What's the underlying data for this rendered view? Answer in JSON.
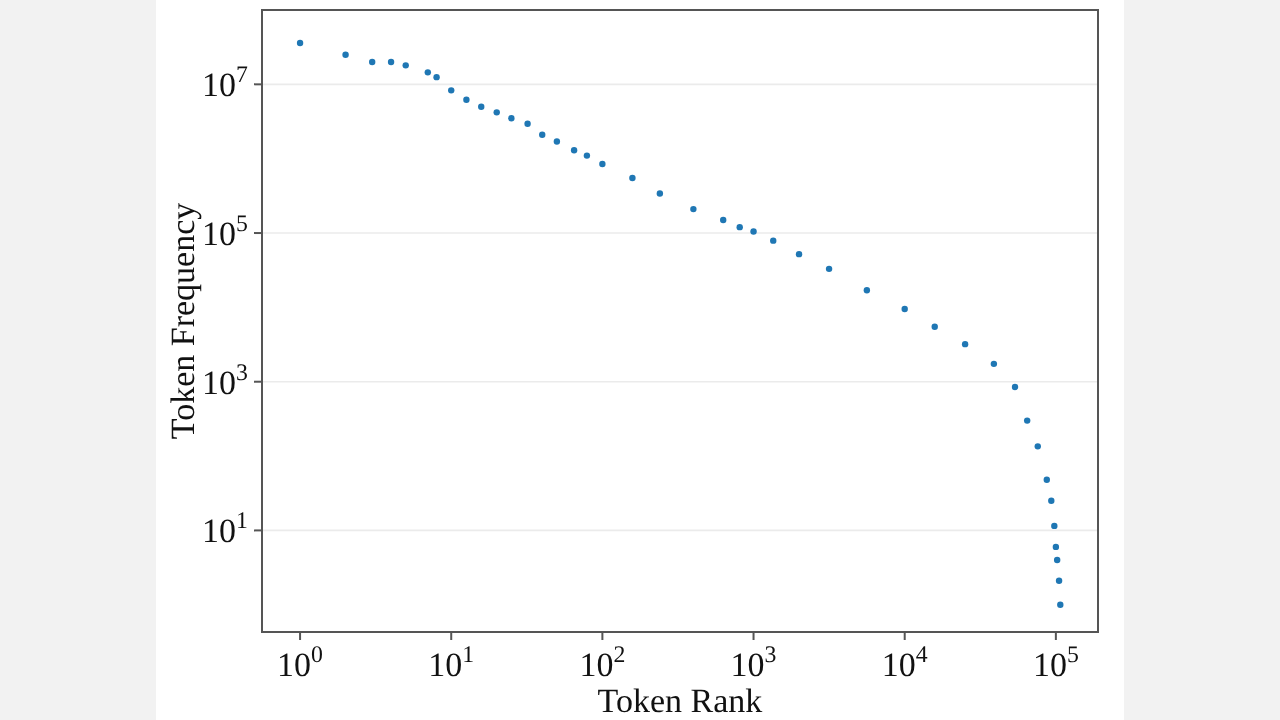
{
  "chart_data": {
    "type": "scatter",
    "xlabel": "Token Rank",
    "ylabel": "Token Frequency",
    "log": "xy",
    "grid": "y",
    "marker": "circle",
    "xlim": [
      0.56,
      190000
    ],
    "ylim": [
      0.43,
      100000000
    ],
    "xticks": [
      {
        "value": 1,
        "label": "10$^{0}$"
      },
      {
        "value": 10,
        "label": "10$^{1}$"
      },
      {
        "value": 100,
        "label": "10$^{2}$"
      },
      {
        "value": 1000,
        "label": "10$^{3}$"
      },
      {
        "value": 10000,
        "label": "10$^{4}$"
      },
      {
        "value": 100000,
        "label": "10$^{5}$"
      }
    ],
    "yticks": [
      {
        "value": 10,
        "label": "10$^{1}$"
      },
      {
        "value": 1000,
        "label": "10$^{3}$"
      },
      {
        "value": 100000,
        "label": "10$^{5}$"
      },
      {
        "value": 10000000,
        "label": "10$^{7}$"
      }
    ],
    "series": [
      {
        "color": "#1f77b4",
        "x": [
          1,
          2,
          3,
          4,
          5,
          7,
          8,
          10,
          12.6,
          15.8,
          20,
          25,
          32,
          40,
          50,
          65,
          79,
          100,
          158,
          240,
          400,
          630,
          810,
          1000,
          1350,
          2000,
          3160,
          5620,
          10000,
          15800,
          25100,
          38900,
          53700,
          64600,
          75900,
          87100,
          93300,
          97700,
          100000,
          102000,
          105000,
          107000
        ],
        "values": [
          36000000,
          25000000,
          20000000,
          20000000,
          18000000,
          14500000,
          12500000,
          8300000,
          6200000,
          5000000,
          4200000,
          3500000,
          2950000,
          2100000,
          1700000,
          1300000,
          1100000,
          850000,
          550000,
          340000,
          210000,
          150000,
          120000,
          105000,
          79000,
          52000,
          33000,
          17000,
          9500,
          5500,
          3200,
          1740,
          850,
          300,
          135,
          48,
          25,
          11.5,
          6,
          4,
          2.1,
          1
        ]
      }
    ]
  }
}
